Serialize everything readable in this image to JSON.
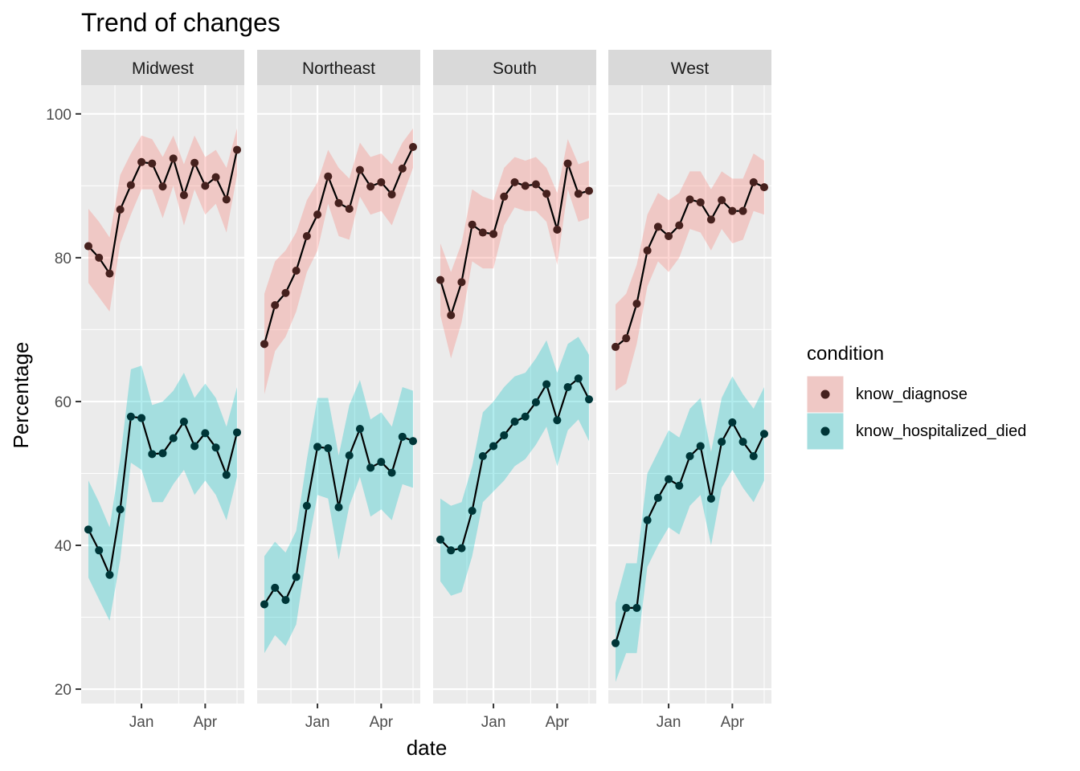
{
  "chart_data": {
    "type": "line",
    "title": "Trend of changes",
    "xlabel": "date",
    "ylabel": "Percentage",
    "ylim": [
      18,
      104
    ],
    "y_ticks": [
      20,
      40,
      60,
      80,
      100
    ],
    "x_ticks": [
      "Jan",
      "Apr"
    ],
    "grid": true,
    "legend": {
      "title": "condition",
      "position": "right",
      "entries": [
        "know_diagnose",
        "know_hospitalized_died"
      ]
    },
    "colors": {
      "know_diagnose": "#F8766D",
      "know_hospitalized_died": "#00BFC4",
      "panel_bg": "#EBEBEB",
      "strip_bg": "#D9D9D9",
      "line": "#000000"
    },
    "panels": [
      {
        "name": "Midwest",
        "series": [
          {
            "name": "know_diagnose",
            "values": [
              81.6,
              80.0,
              77.8,
              86.7,
              90.1,
              93.3,
              93.1,
              89.9,
              93.8,
              88.7,
              93.2,
              90.0,
              91.2,
              88.1,
              95.0
            ],
            "lower": [
              76.5,
              74.5,
              72.5,
              82.0,
              86.0,
              89.5,
              89.5,
              85.5,
              90.0,
              84.5,
              89.5,
              86.0,
              87.5,
              83.5,
              91.5
            ],
            "upper": [
              86.8,
              85.0,
              82.8,
              91.5,
              94.5,
              97.0,
              96.5,
              94.0,
              97.0,
              93.0,
              97.0,
              94.0,
              95.0,
              92.5,
              98.0
            ]
          },
          {
            "name": "know_hospitalized_died",
            "values": [
              42.2,
              39.3,
              35.9,
              45.0,
              57.9,
              57.7,
              52.7,
              52.8,
              54.9,
              57.2,
              53.8,
              55.6,
              53.6,
              49.8,
              55.7
            ],
            "lower": [
              35.5,
              32.5,
              29.5,
              38.0,
              51.5,
              50.5,
              46.0,
              46.0,
              48.5,
              50.5,
              47.0,
              49.0,
              47.0,
              43.5,
              49.5
            ],
            "upper": [
              49.0,
              46.0,
              42.5,
              52.0,
              64.5,
              65.0,
              59.5,
              60.0,
              61.5,
              64.0,
              60.5,
              62.5,
              60.5,
              56.5,
              62.0
            ]
          }
        ]
      },
      {
        "name": "Northeast",
        "series": [
          {
            "name": "know_diagnose",
            "values": [
              68.0,
              73.4,
              75.1,
              78.2,
              83.0,
              86.0,
              91.3,
              87.6,
              86.8,
              92.2,
              89.9,
              90.5,
              88.8,
              92.4,
              95.4
            ],
            "lower": [
              61.0,
              67.0,
              69.0,
              72.5,
              78.0,
              81.0,
              87.5,
              83.0,
              82.5,
              88.5,
              86.0,
              86.5,
              84.5,
              88.5,
              92.5
            ],
            "upper": [
              75.0,
              79.5,
              81.0,
              83.5,
              88.0,
              90.5,
              95.0,
              92.5,
              91.0,
              96.0,
              94.0,
              94.5,
              93.0,
              96.0,
              98.0
            ]
          },
          {
            "name": "know_hospitalized_died",
            "values": [
              31.8,
              34.1,
              32.4,
              35.6,
              45.5,
              53.7,
              53.5,
              45.3,
              52.5,
              56.2,
              50.8,
              51.6,
              50.1,
              55.1,
              54.5
            ],
            "lower": [
              25.0,
              27.5,
              26.0,
              29.0,
              39.0,
              47.0,
              46.5,
              38.0,
              45.5,
              49.5,
              44.0,
              45.0,
              43.5,
              48.5,
              48.0
            ],
            "upper": [
              38.5,
              40.5,
              39.0,
              42.0,
              52.0,
              60.5,
              60.5,
              52.5,
              59.5,
              63.0,
              57.5,
              58.5,
              56.5,
              62.0,
              61.5
            ]
          }
        ]
      },
      {
        "name": "South",
        "series": [
          {
            "name": "know_diagnose",
            "values": [
              76.9,
              72.0,
              76.6,
              84.6,
              83.5,
              83.3,
              88.5,
              90.5,
              90.0,
              90.2,
              88.9,
              83.9,
              93.1,
              88.9,
              89.3
            ],
            "lower": [
              72.0,
              66.0,
              71.0,
              79.5,
              78.5,
              78.5,
              84.5,
              87.0,
              86.5,
              86.5,
              85.0,
              79.0,
              89.5,
              85.0,
              85.5
            ],
            "upper": [
              82.0,
              78.0,
              82.0,
              89.5,
              88.5,
              88.0,
              92.5,
              94.0,
              93.5,
              94.0,
              92.5,
              89.0,
              96.5,
              93.0,
              93.5
            ]
          },
          {
            "name": "know_hospitalized_died",
            "values": [
              40.8,
              39.3,
              39.6,
              44.8,
              52.4,
              53.8,
              55.3,
              57.2,
              57.9,
              59.9,
              62.4,
              57.4,
              62.0,
              63.2,
              60.3
            ],
            "lower": [
              35.0,
              33.0,
              33.5,
              38.5,
              46.0,
              47.5,
              49.0,
              51.0,
              52.0,
              54.0,
              56.5,
              51.0,
              56.0,
              57.5,
              54.5
            ],
            "upper": [
              46.5,
              45.5,
              46.0,
              51.0,
              58.5,
              60.0,
              62.0,
              63.5,
              64.0,
              66.0,
              68.5,
              64.0,
              68.0,
              69.0,
              66.5
            ]
          }
        ]
      },
      {
        "name": "West",
        "series": [
          {
            "name": "know_diagnose",
            "values": [
              67.6,
              68.8,
              73.6,
              81.0,
              84.3,
              83.0,
              84.5,
              88.1,
              87.7,
              85.3,
              88.0,
              86.5,
              86.5,
              90.5,
              89.8
            ],
            "lower": [
              61.5,
              62.5,
              68.0,
              76.0,
              79.5,
              78.0,
              80.0,
              84.0,
              83.5,
              81.0,
              84.0,
              82.0,
              82.5,
              86.5,
              86.0
            ],
            "upper": [
              73.5,
              75.0,
              79.0,
              86.0,
              89.0,
              88.0,
              89.0,
              92.0,
              92.0,
              89.5,
              92.0,
              91.0,
              91.0,
              94.5,
              93.5
            ]
          },
          {
            "name": "know_hospitalized_died",
            "values": [
              26.4,
              31.3,
              31.3,
              43.5,
              46.6,
              49.2,
              48.3,
              52.4,
              53.8,
              46.5,
              54.4,
              57.1,
              54.4,
              52.4,
              55.5
            ],
            "lower": [
              21.0,
              25.0,
              25.0,
              37.0,
              40.0,
              42.5,
              41.5,
              45.5,
              47.0,
              40.0,
              48.0,
              50.5,
              48.0,
              46.0,
              49.0
            ],
            "upper": [
              32.0,
              37.5,
              37.5,
              50.0,
              53.0,
              56.0,
              55.0,
              59.0,
              60.5,
              53.0,
              60.5,
              63.5,
              61.0,
              59.0,
              62.0
            ]
          }
        ]
      }
    ]
  }
}
